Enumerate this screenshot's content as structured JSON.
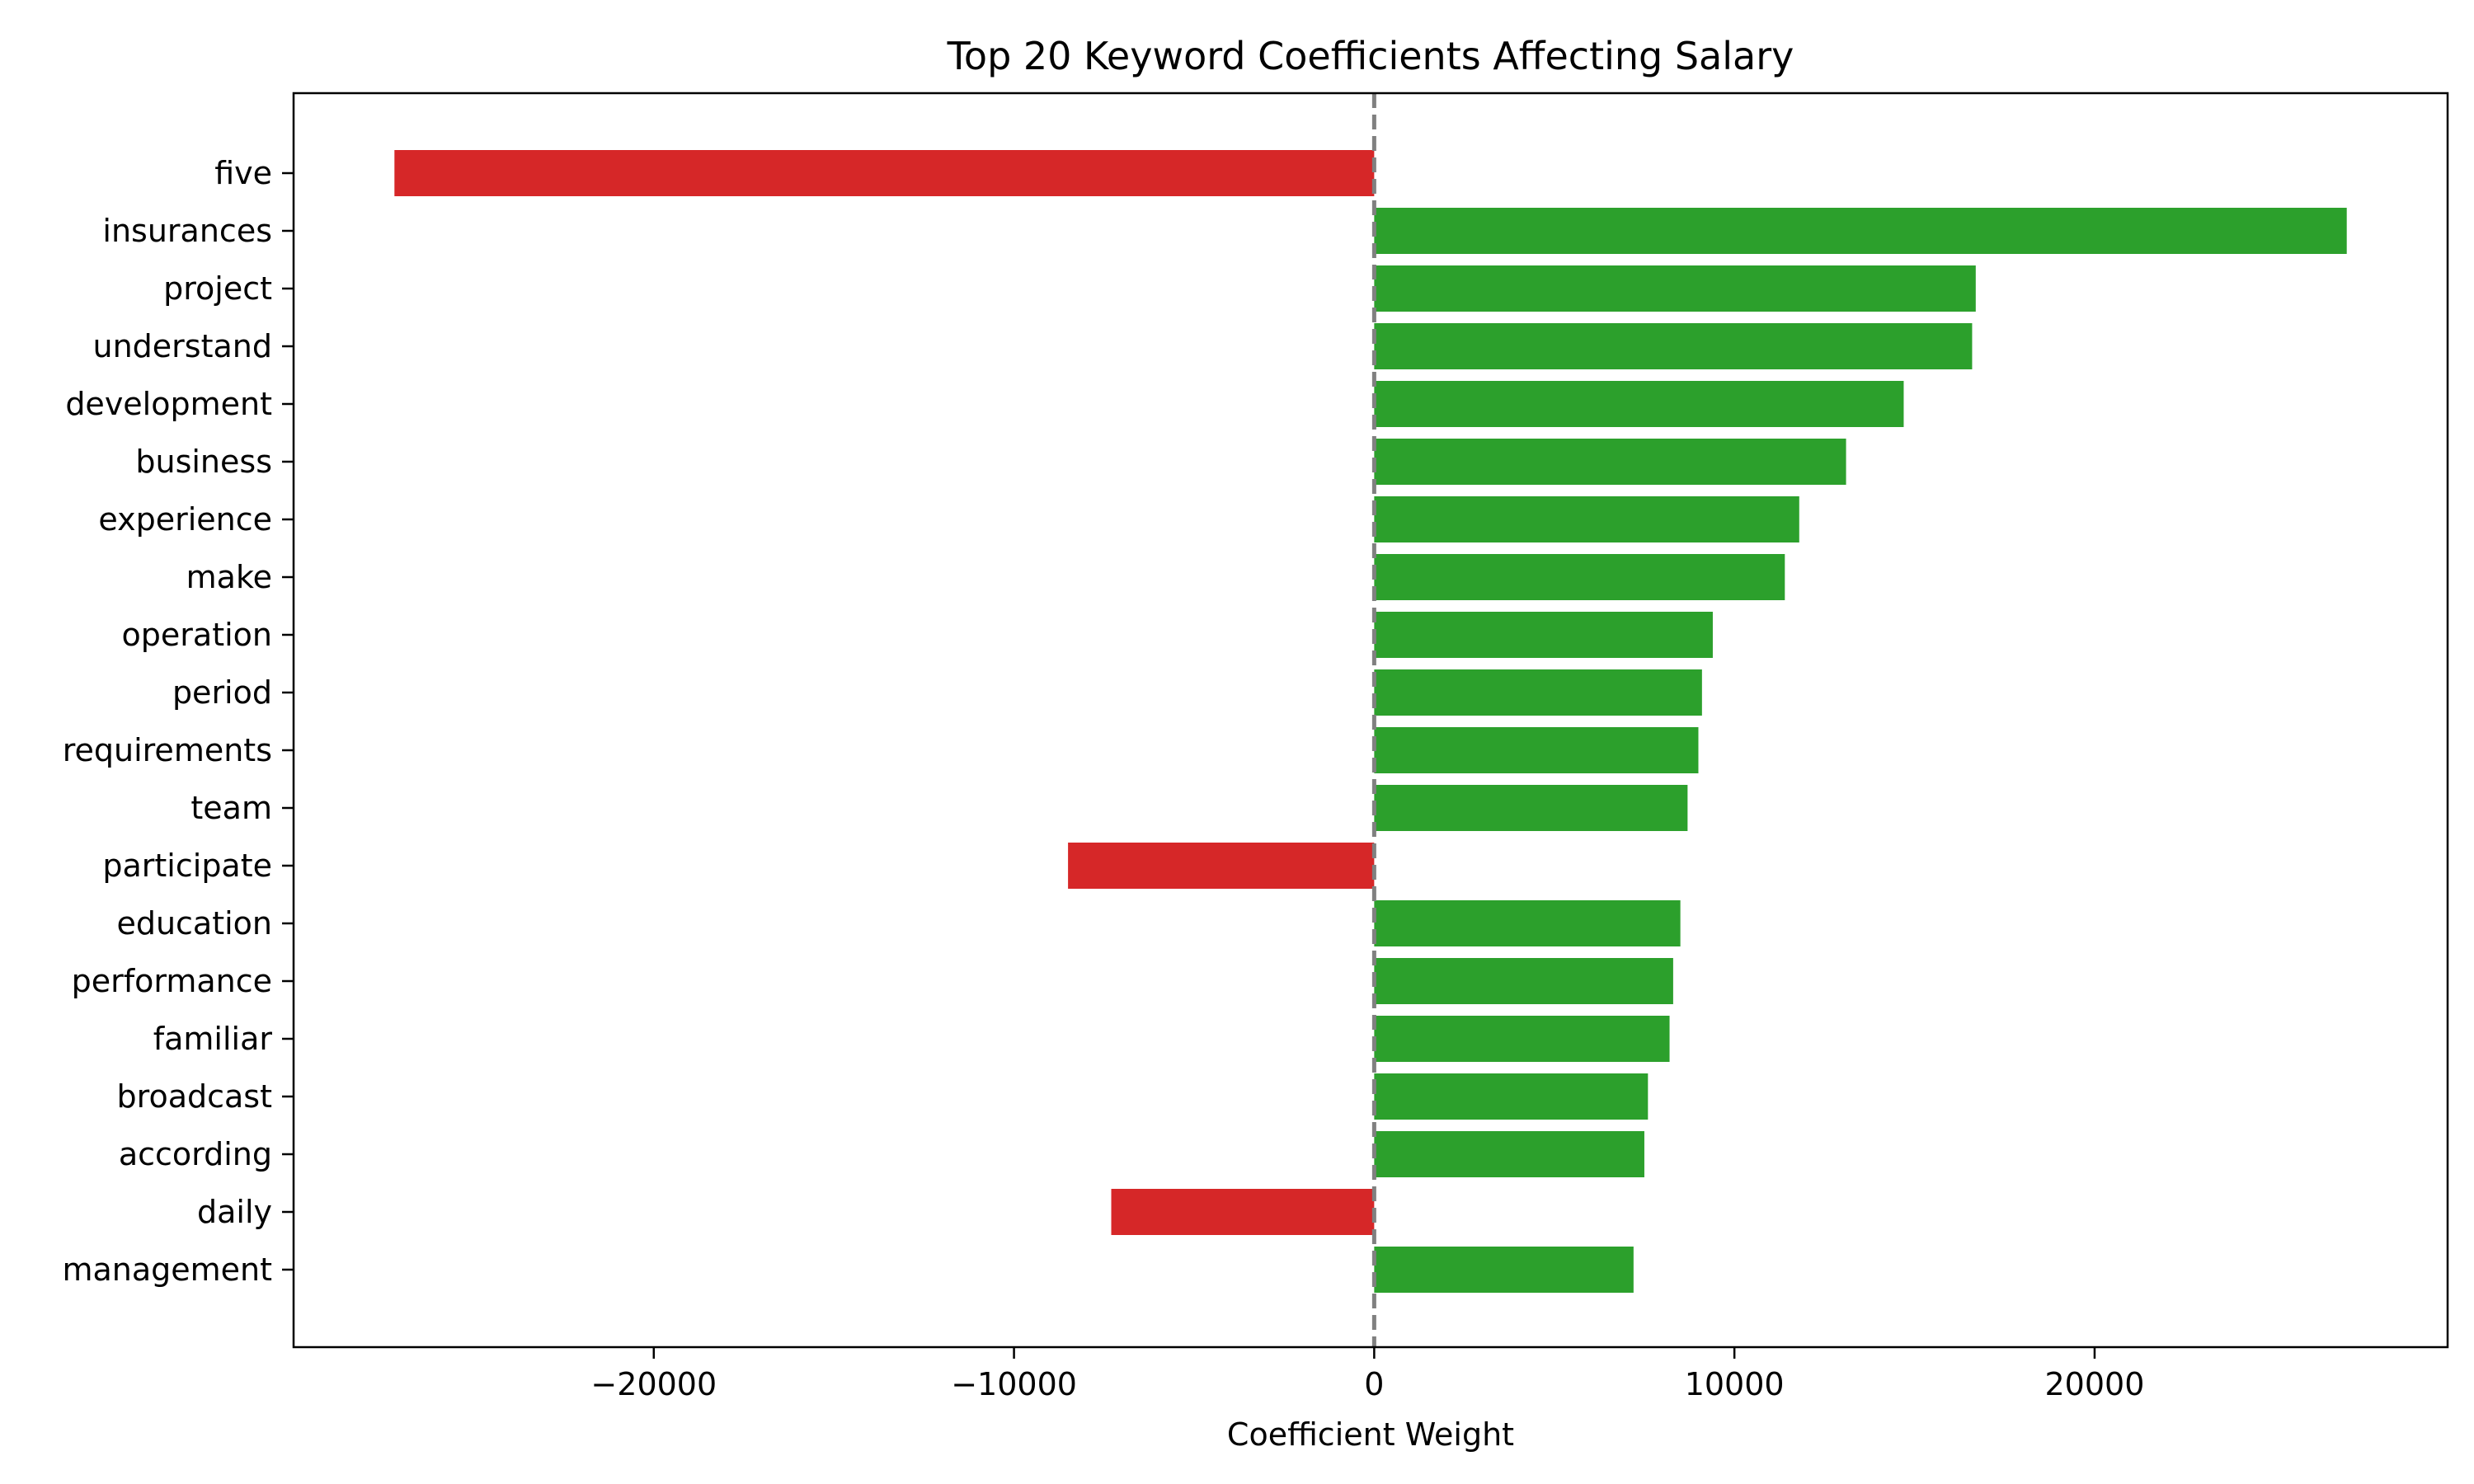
{
  "chart_data": {
    "type": "bar",
    "orientation": "horizontal",
    "title": "Top 20 Keyword Coefficients Affecting Salary",
    "xlabel": "Coefficient Weight",
    "ylabel": "",
    "xlim": [
      -30000,
      29800
    ],
    "xticks": [
      -20000,
      -10000,
      0,
      10000,
      20000
    ],
    "xtick_labels": [
      "−20000",
      "−10000",
      "0",
      "10000",
      "20000"
    ],
    "grid": false,
    "reference_line": {
      "value": 0,
      "style": "dashed",
      "color": "#808080"
    },
    "colors": {
      "positive": "#2ca02c",
      "negative": "#d62728",
      "axis": "#000000"
    },
    "categories": [
      "five",
      "insurances",
      "project",
      "understand",
      "development",
      "business",
      "experience",
      "make",
      "operation",
      "period",
      "requirements",
      "team",
      "participate",
      "education",
      "performance",
      "familiar",
      "broadcast",
      "according",
      "daily",
      "management"
    ],
    "values": [
      -27200,
      27000,
      16700,
      16600,
      14700,
      13100,
      11800,
      11400,
      9400,
      9100,
      9000,
      8700,
      -8500,
      8500,
      8300,
      8200,
      7600,
      7500,
      -7300,
      7200
    ]
  }
}
